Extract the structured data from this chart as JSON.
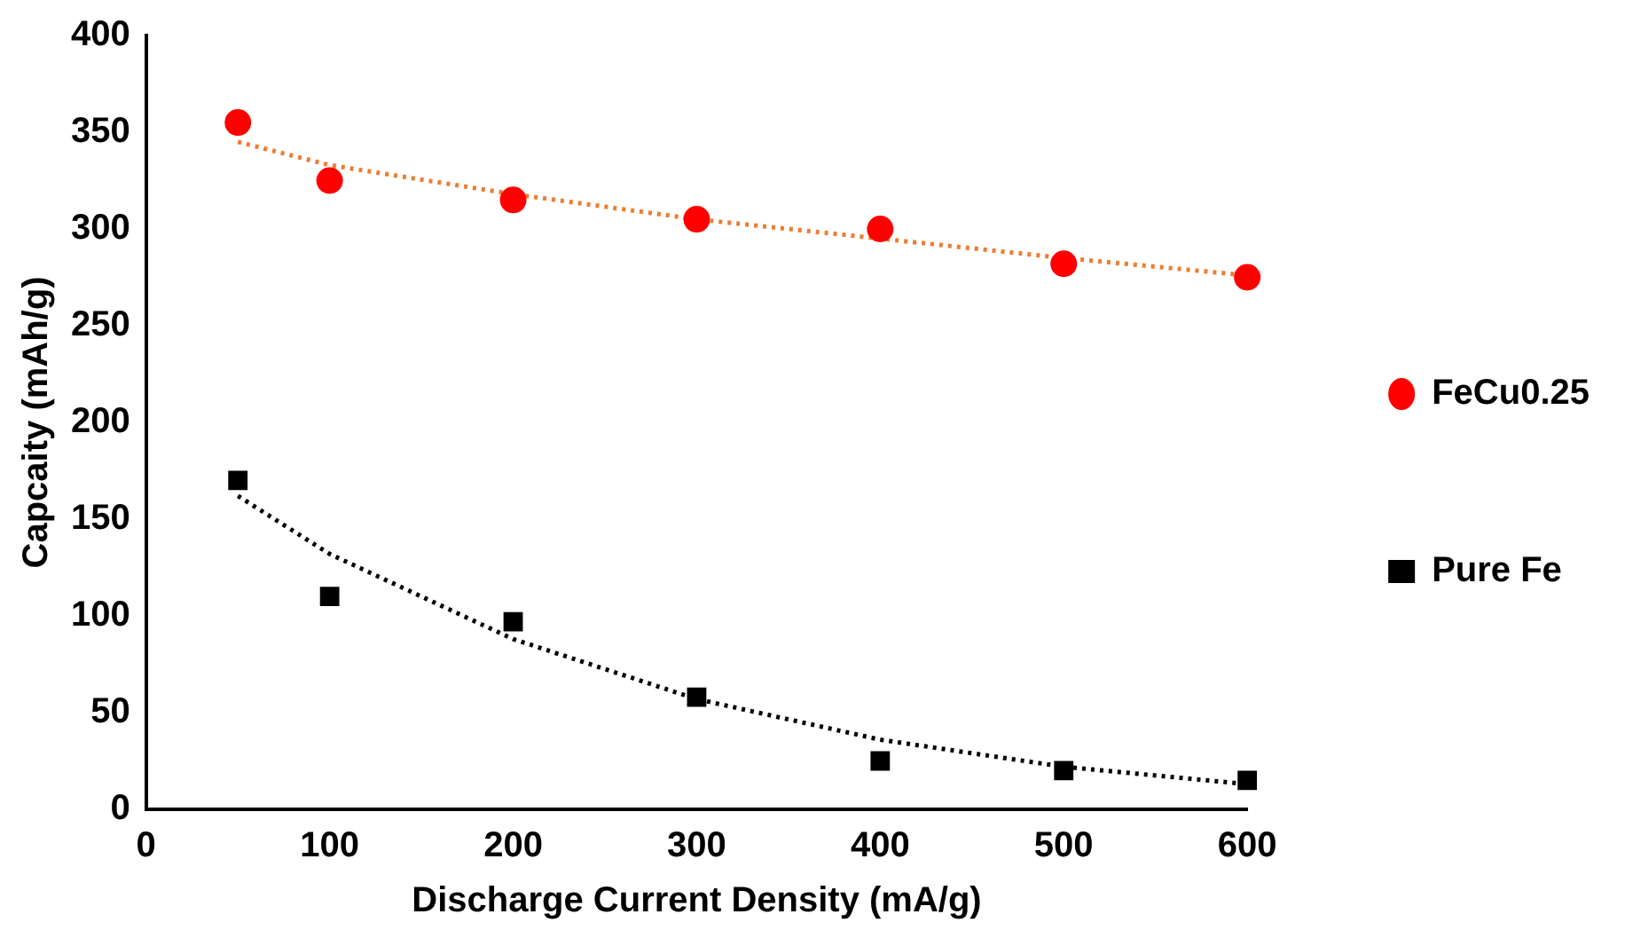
{
  "chart_data": {
    "type": "scatter",
    "xlabel": "Discharge Current Density (mA/g)",
    "ylabel": "Capcaity (mAh/g)",
    "x": [
      50,
      100,
      200,
      300,
      400,
      500,
      600
    ],
    "xlim": [
      0,
      600
    ],
    "xticks": [
      0,
      100,
      200,
      300,
      400,
      500,
      600
    ],
    "ylim": [
      0,
      400
    ],
    "yticks": [
      0,
      50,
      100,
      150,
      200,
      250,
      300,
      350,
      400
    ],
    "grid": false,
    "legend": "right",
    "series": [
      {
        "name": "FeCu0.25",
        "marker": "circle",
        "color": "#ff0000",
        "values": [
          355,
          325,
          315,
          305,
          300,
          282,
          275
        ]
      },
      {
        "name": "Pure Fe",
        "marker": "square",
        "color": "#000000",
        "values": [
          170,
          110,
          97,
          58,
          25,
          20,
          15
        ]
      },
      {
        "type": "line",
        "marker": "none",
        "line_style": "dotted",
        "color": "#ed7d31",
        "x": [
          50,
          100,
          200,
          300,
          400,
          500,
          600
        ],
        "values": [
          345,
          333,
          318,
          305,
          295,
          285,
          276
        ]
      },
      {
        "type": "line",
        "marker": "none",
        "line_style": "dotted",
        "color": "#000000",
        "x": [
          50,
          100,
          200,
          300,
          400,
          500,
          600
        ],
        "values": [
          162,
          132,
          88,
          57,
          36,
          22,
          13
        ]
      }
    ]
  }
}
